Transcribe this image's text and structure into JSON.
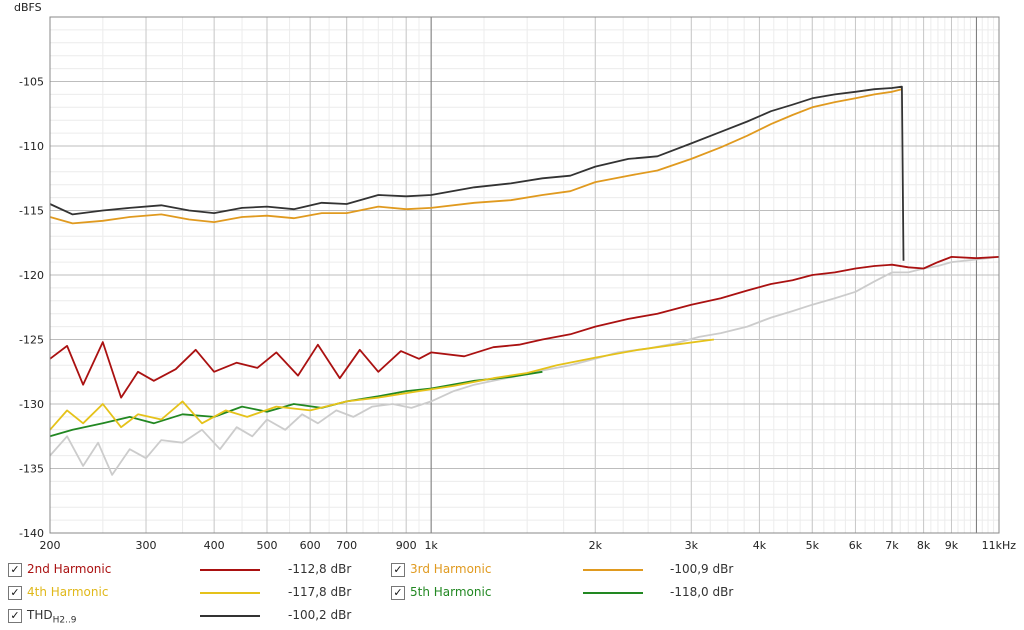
{
  "chart_data": {
    "type": "line",
    "ylabel": "dBFS",
    "xscale": "log",
    "xlim": [
      200,
      11000
    ],
    "ylim": [
      -140,
      -100
    ],
    "grid": true,
    "y_ticks": [
      "-105",
      "-110",
      "-115",
      "-120",
      "-125",
      "-130",
      "-135",
      "-140"
    ],
    "y_tick_values": [
      -105,
      -110,
      -115,
      -120,
      -125,
      -130,
      -135,
      -140
    ],
    "x_ticks": [
      "200",
      "300",
      "400",
      "500",
      "600",
      "700",
      "900",
      "1k",
      "2k",
      "3k",
      "4k",
      "5k",
      "6k",
      "7k",
      "8k",
      "9k",
      "11kHz"
    ],
    "x_tick_values": [
      200,
      300,
      400,
      500,
      600,
      700,
      900,
      1000,
      2000,
      3000,
      4000,
      5000,
      6000,
      7000,
      8000,
      9000,
      11000
    ],
    "series": [
      {
        "name": "THD",
        "color": "#333333",
        "x": [
          200,
          220,
          250,
          280,
          320,
          360,
          400,
          450,
          500,
          560,
          630,
          700,
          800,
          900,
          1000,
          1200,
          1400,
          1600,
          1800,
          2000,
          2300,
          2600,
          3000,
          3400,
          3800,
          4200,
          4600,
          5000,
          5500,
          6000,
          6500,
          7000,
          7300,
          7350
        ],
        "y": [
          -114.5,
          -115.3,
          -115.0,
          -114.8,
          -114.6,
          -115.0,
          -115.2,
          -114.8,
          -114.7,
          -114.9,
          -114.4,
          -114.5,
          -113.8,
          -113.9,
          -113.8,
          -113.2,
          -112.9,
          -112.5,
          -112.3,
          -111.6,
          -111.0,
          -110.8,
          -109.8,
          -108.9,
          -108.1,
          -107.3,
          -106.8,
          -106.3,
          -106.0,
          -105.8,
          -105.6,
          -105.5,
          -105.4,
          -118.9
        ]
      },
      {
        "name": "3rd Harmonic",
        "color": "#e09a1f",
        "x": [
          200,
          220,
          250,
          280,
          320,
          360,
          400,
          450,
          500,
          560,
          630,
          700,
          800,
          900,
          1000,
          1200,
          1400,
          1600,
          1800,
          2000,
          2300,
          2600,
          3000,
          3400,
          3800,
          4200,
          4600,
          5000,
          5500,
          6000,
          6500,
          7000,
          7300
        ],
        "y": [
          -115.5,
          -116.0,
          -115.8,
          -115.5,
          -115.3,
          -115.7,
          -115.9,
          -115.5,
          -115.4,
          -115.6,
          -115.2,
          -115.2,
          -114.7,
          -114.9,
          -114.8,
          -114.4,
          -114.2,
          -113.8,
          -113.5,
          -112.8,
          -112.3,
          -111.9,
          -111.0,
          -110.1,
          -109.2,
          -108.3,
          -107.6,
          -107.0,
          -106.6,
          -106.3,
          -106.0,
          -105.8,
          -105.6
        ]
      },
      {
        "name": "2nd Harmonic",
        "color": "#aa1111",
        "x": [
          200,
          215,
          230,
          250,
          270,
          290,
          310,
          340,
          370,
          400,
          440,
          480,
          520,
          570,
          620,
          680,
          740,
          800,
          880,
          950,
          1000,
          1150,
          1300,
          1450,
          1600,
          1800,
          2000,
          2300,
          2600,
          3000,
          3400,
          3800,
          4200,
          4600,
          5000,
          5500,
          6000,
          6500,
          7000,
          7500,
          8000,
          8500,
          9000,
          10000,
          11000
        ],
        "y": [
          -126.5,
          -125.5,
          -128.5,
          -125.2,
          -129.5,
          -127.5,
          -128.2,
          -127.3,
          -125.8,
          -127.5,
          -126.8,
          -127.2,
          -126.0,
          -127.8,
          -125.4,
          -128.0,
          -125.8,
          -127.5,
          -125.9,
          -126.5,
          -126.0,
          -126.3,
          -125.6,
          -125.4,
          -125.0,
          -124.6,
          -124.0,
          -123.4,
          -123.0,
          -122.3,
          -121.8,
          -121.2,
          -120.7,
          -120.4,
          -120.0,
          -119.8,
          -119.5,
          -119.3,
          -119.2,
          -119.4,
          -119.5,
          -119.0,
          -118.6,
          -118.7,
          -118.6
        ]
      },
      {
        "name": "4th Harmonic",
        "color": "#e5c21a",
        "x": [
          200,
          215,
          230,
          250,
          270,
          290,
          320,
          350,
          380,
          420,
          460,
          520,
          600,
          700,
          800,
          950,
          1100,
          1300,
          1500,
          1700,
          2000,
          2400,
          2800,
          3300
        ],
        "y": [
          -132.0,
          -130.5,
          -131.5,
          -130.0,
          -131.8,
          -130.8,
          -131.2,
          -129.8,
          -131.5,
          -130.5,
          -131.0,
          -130.2,
          -130.5,
          -129.8,
          -129.5,
          -129.0,
          -128.6,
          -128.0,
          -127.6,
          -127.0,
          -126.4,
          -125.8,
          -125.4,
          -125.0
        ]
      },
      {
        "name": "5th Harmonic",
        "color": "#228822",
        "x": [
          200,
          220,
          250,
          280,
          310,
          350,
          400,
          450,
          500,
          560,
          630,
          700,
          800,
          900,
          1000,
          1200,
          1400,
          1600
        ],
        "y": [
          -132.5,
          -132.0,
          -131.5,
          -131.0,
          -131.5,
          -130.8,
          -131.0,
          -130.2,
          -130.6,
          -130.0,
          -130.3,
          -129.8,
          -129.4,
          -129.0,
          -128.8,
          -128.2,
          -127.9,
          -127.5
        ]
      },
      {
        "name": "",
        "color": "#cccccc",
        "x": [
          200,
          215,
          230,
          245,
          260,
          280,
          300,
          320,
          350,
          380,
          410,
          440,
          470,
          500,
          540,
          580,
          620,
          670,
          720,
          780,
          850,
          920,
          1000,
          1100,
          1200,
          1300,
          1450,
          1600,
          1800,
          2000,
          2200,
          2500,
          2800,
          3100,
          3400,
          3800,
          4200,
          4600,
          5000,
          5500,
          6000,
          6500,
          7000,
          7500,
          8000,
          8500,
          9000,
          10000,
          11000
        ],
        "y": [
          -134.0,
          -132.5,
          -134.8,
          -133.0,
          -135.5,
          -133.5,
          -134.2,
          -132.8,
          -133.0,
          -132.0,
          -133.5,
          -131.8,
          -132.5,
          -131.2,
          -132.0,
          -130.8,
          -131.5,
          -130.5,
          -131.0,
          -130.2,
          -130.0,
          -130.3,
          -129.8,
          -129.0,
          -128.5,
          -128.2,
          -127.8,
          -127.4,
          -127.0,
          -126.5,
          -126.0,
          -125.7,
          -125.3,
          -124.8,
          -124.5,
          -124.0,
          -123.3,
          -122.8,
          -122.3,
          -121.8,
          -121.3,
          -120.5,
          -119.8,
          -119.8,
          -119.5,
          -119.3,
          -119.0,
          -118.8,
          -118.6
        ]
      }
    ]
  },
  "legend": {
    "items": [
      {
        "label": "2nd Harmonic",
        "sub": "",
        "value": "-112,8 dBr",
        "color": "#aa1111",
        "text_color": "#aa1111",
        "checked": "✓"
      },
      {
        "label": "3rd Harmonic",
        "sub": "",
        "value": "-100,9 dBr",
        "color": "#e09a1f",
        "text_color": "#e09a1f",
        "checked": "✓"
      },
      {
        "label": "4th Harmonic",
        "sub": "",
        "value": "-117,8 dBr",
        "color": "#e5c21a",
        "text_color": "#e0b81a",
        "checked": "✓"
      },
      {
        "label": "5th Harmonic",
        "sub": "",
        "value": "-118,0 dBr",
        "color": "#228822",
        "text_color": "#228822",
        "checked": "✓"
      },
      {
        "label": "THD",
        "sub": "H2..9",
        "value": "-100,2 dBr",
        "color": "#333333",
        "text_color": "#333333",
        "checked": "✓"
      }
    ]
  }
}
